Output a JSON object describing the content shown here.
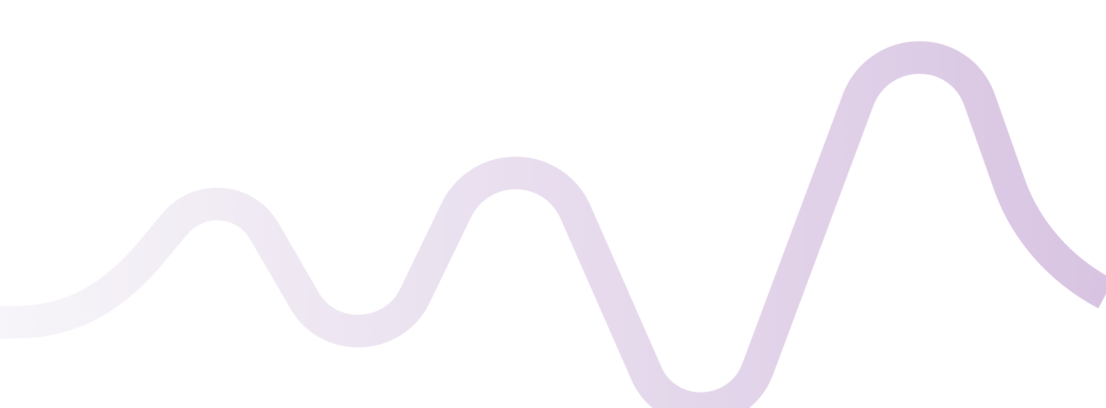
{
  "graphic": {
    "kind": "decorative-wave-line",
    "gradient_start_color": "#f7f5f9",
    "gradient_end_color": "#d8c4e2",
    "background_color": "#ffffff"
  }
}
